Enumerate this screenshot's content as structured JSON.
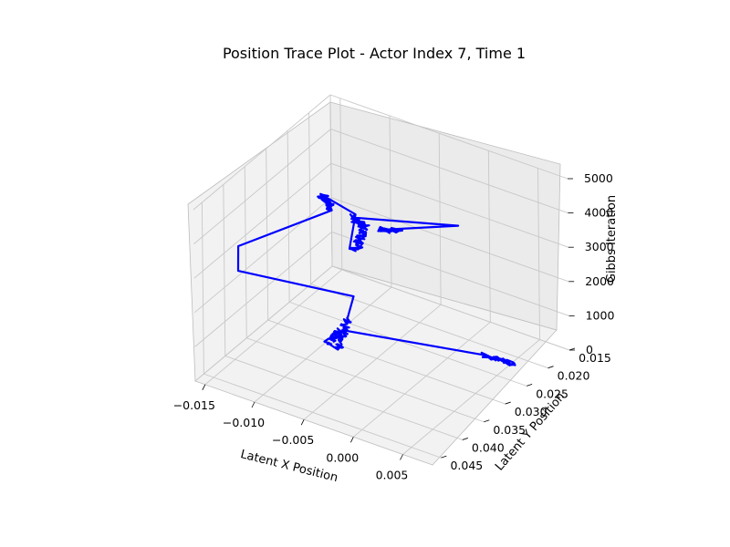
{
  "chart_data": {
    "type": "line",
    "title": "Position Trace Plot - Actor Index 7, Time 1",
    "xlabel": "Latent X Position",
    "ylabel": "Latent Y Position",
    "zlabel": "Gibbs Iteration",
    "xlim": [
      -0.016,
      0.008
    ],
    "ylim": [
      0.015,
      0.047
    ],
    "zlim": [
      0,
      5000
    ],
    "x_ticks": [
      "−0.015",
      "−0.010",
      "−0.005",
      "0.000",
      "0.005"
    ],
    "y_ticks": [
      "0.015",
      "0.020",
      "0.025",
      "0.030",
      "0.035",
      "0.040",
      "0.045"
    ],
    "z_ticks": [
      "0",
      "1000",
      "2000",
      "3000",
      "4000",
      "5000"
    ],
    "grid": true,
    "line_color": "#0000ff",
    "series": [
      {
        "segments": [
          {
            "from": [
              0.0051,
              0.0216,
              0
            ],
            "to": [
              0.003,
              0.0232,
              200
            ],
            "jitter": true
          },
          {
            "from": [
              0.003,
              0.0232,
              200
            ],
            "to": [
              -0.0078,
              0.0315,
              700
            ],
            "jitter": false
          },
          {
            "from": [
              -0.0078,
              0.0315,
              700
            ],
            "to": [
              -0.007,
              0.037,
              1000
            ],
            "jitter": true
          },
          {
            "from": [
              -0.007,
              0.037,
              1000
            ],
            "to": [
              -0.005,
              0.039,
              1200
            ],
            "jitter": false
          },
          {
            "from": [
              -0.005,
              0.039,
              1200
            ],
            "to": [
              -0.004,
              0.039,
              2200
            ],
            "jitter": true
          },
          {
            "from": [
              -0.004,
              0.039,
              2200
            ],
            "to": [
              -0.004,
              0.0375,
              2700
            ],
            "jitter": false
          },
          {
            "from": [
              -0.004,
              0.0375,
              2700
            ],
            "to": [
              -0.0135,
              0.0425,
              3000
            ],
            "jitter": false
          },
          {
            "from": [
              -0.0135,
              0.0425,
              3000
            ],
            "to": [
              -0.015,
              0.039,
              3200
            ],
            "jitter": false
          },
          {
            "from": [
              -0.015,
              0.039,
              3200
            ],
            "to": [
              -0.0105,
              0.0275,
              3500
            ],
            "jitter": false
          },
          {
            "from": [
              -0.0105,
              0.0275,
              3500
            ],
            "to": [
              -0.011,
              0.0285,
              4000
            ],
            "jitter": true
          },
          {
            "from": [
              -0.011,
              0.0285,
              4000
            ],
            "to": [
              -0.007,
              0.03,
              4000
            ],
            "jitter": false
          },
          {
            "from": [
              -0.007,
              0.03,
              4000
            ],
            "to": [
              -0.0048,
              0.0365,
              3900
            ],
            "jitter": false
          },
          {
            "from": [
              -0.0048,
              0.0365,
              3900
            ],
            "to": [
              -0.004,
              0.037,
              4000
            ],
            "jitter": false
          },
          {
            "from": [
              -0.004,
              0.037,
              4000
            ],
            "to": [
              -0.0035,
              0.036,
              4600
            ],
            "jitter": true
          },
          {
            "from": [
              -0.0035,
              0.036,
              4600
            ],
            "to": [
              -0.004,
              0.0375,
              5000
            ],
            "jitter": true
          },
          {
            "from": [
              -0.004,
              0.0375,
              5000
            ],
            "to": [
              0.0042,
              0.0318,
              5000
            ],
            "jitter": false
          },
          {
            "from": [
              0.0042,
              0.0318,
              5000
            ],
            "to": [
              -0.001,
              0.038,
              5000
            ],
            "jitter": false
          },
          {
            "from": [
              -0.001,
              0.038,
              5000
            ],
            "to": [
              0.0005,
              0.0368,
              5000
            ],
            "jitter": true
          }
        ]
      }
    ]
  }
}
